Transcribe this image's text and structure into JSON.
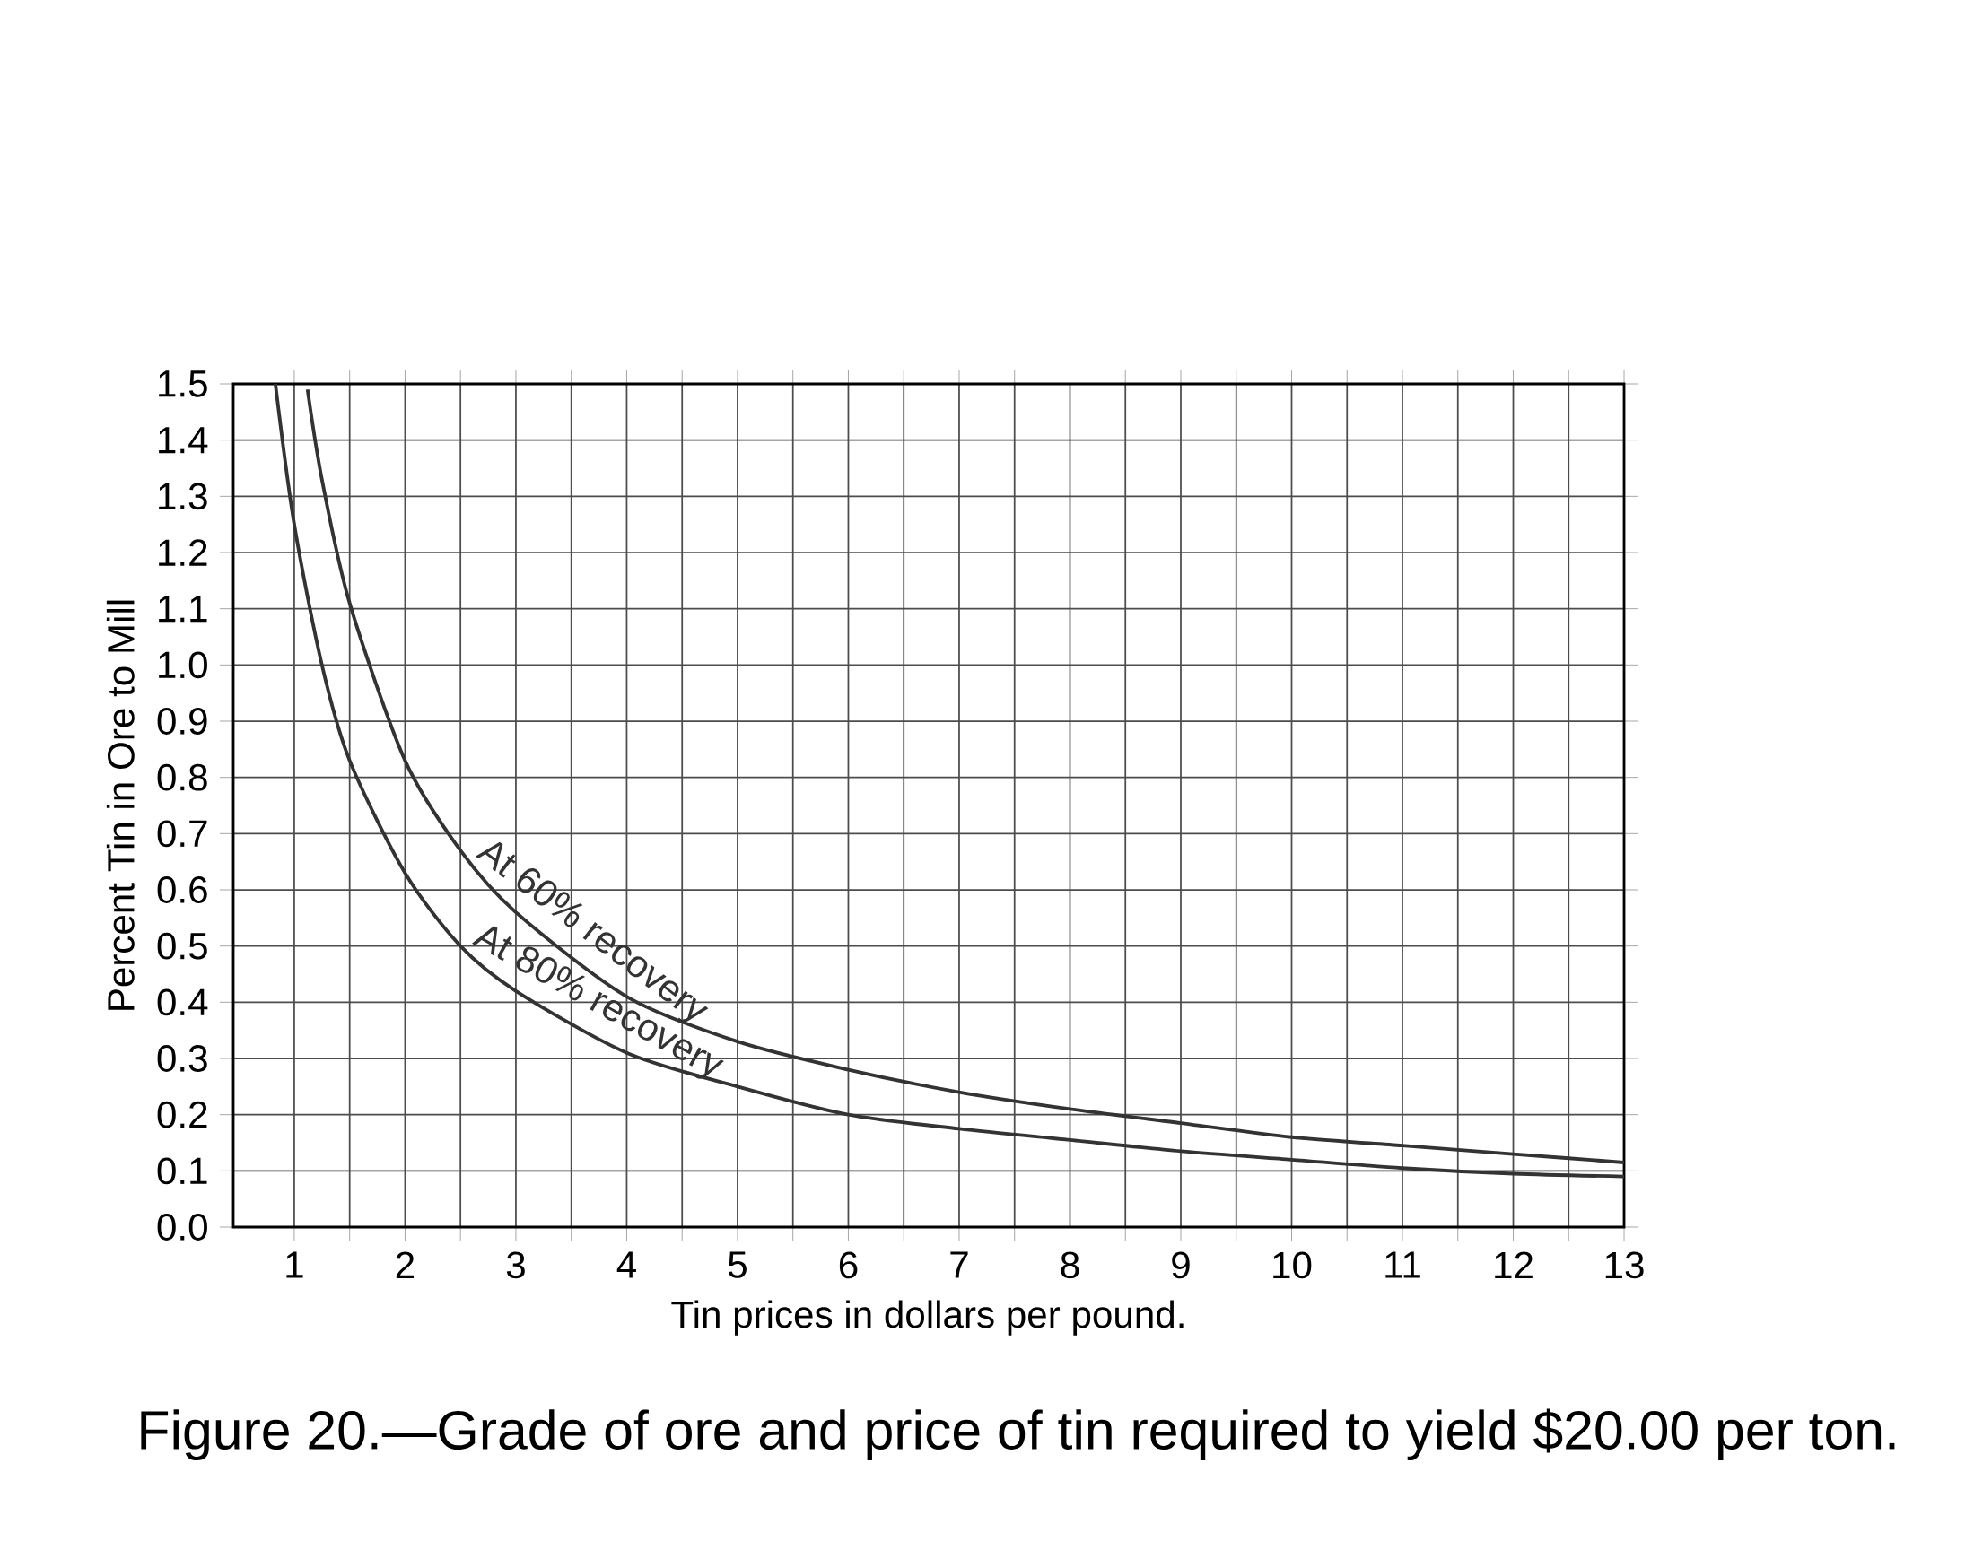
{
  "chart_data": {
    "type": "line",
    "xlabel": "Tin prices in dollars per pound.",
    "ylabel": "Percent Tin in Ore to Mill",
    "annotations": [
      "Figure 20.—Grade of ore and price of tin required to yield $20.00 per ton."
    ],
    "xlim": [
      0.45,
      13
    ],
    "ylim": [
      0,
      1.5
    ],
    "xticks": [
      1,
      {
        "value": 1.5,
        "label": null
      },
      2,
      {
        "value": 2.5,
        "label": null
      },
      3,
      {
        "value": 3.5,
        "label": null
      },
      4,
      {
        "value": 4.5,
        "label": null
      },
      5,
      {
        "value": 5.5,
        "label": null
      },
      6,
      {
        "value": 6.5,
        "label": null
      },
      7,
      {
        "value": 7.5,
        "label": null
      },
      8,
      {
        "value": 8.5,
        "label": null
      },
      9,
      {
        "value": 9.5,
        "label": null
      },
      10,
      {
        "value": 10.5,
        "label": null
      },
      11,
      {
        "value": 11.5,
        "label": null
      },
      12,
      {
        "value": 12.5,
        "label": null
      },
      13
    ],
    "yticks": [
      {
        "value": 0,
        "label": "0.0"
      },
      0.1,
      0.2,
      0.3,
      0.4,
      0.5,
      0.6,
      0.7,
      0.8,
      0.9,
      {
        "value": 1,
        "label": "1.0"
      },
      1.1,
      1.2,
      1.3,
      1.4,
      1.5
    ],
    "grid": true,
    "marker": "none",
    "line_style": "solid",
    "series": [
      {
        "name": "At 60% recovery",
        "color": "#333333",
        "x": [
          1.12,
          1.25,
          1.5,
          2,
          2.5,
          3,
          4,
          5,
          6,
          7,
          8,
          9,
          10,
          11,
          12,
          13
        ],
        "values": [
          1.49,
          1.33,
          1.11,
          0.83,
          0.67,
          0.56,
          0.41,
          0.33,
          0.28,
          0.24,
          0.21,
          0.185,
          0.16,
          0.145,
          0.13,
          0.115
        ]
      },
      {
        "name": "At 80% recovery",
        "color": "#333333",
        "x": [
          0.83,
          1,
          1.25,
          1.5,
          2,
          2.5,
          3,
          4,
          5,
          6,
          7,
          8,
          9,
          10,
          11,
          12,
          13
        ],
        "values": [
          1.5,
          1.25,
          1.0,
          0.83,
          0.63,
          0.5,
          0.42,
          0.31,
          0.25,
          0.2,
          0.175,
          0.155,
          0.135,
          0.12,
          0.105,
          0.095,
          0.09
        ]
      }
    ]
  }
}
